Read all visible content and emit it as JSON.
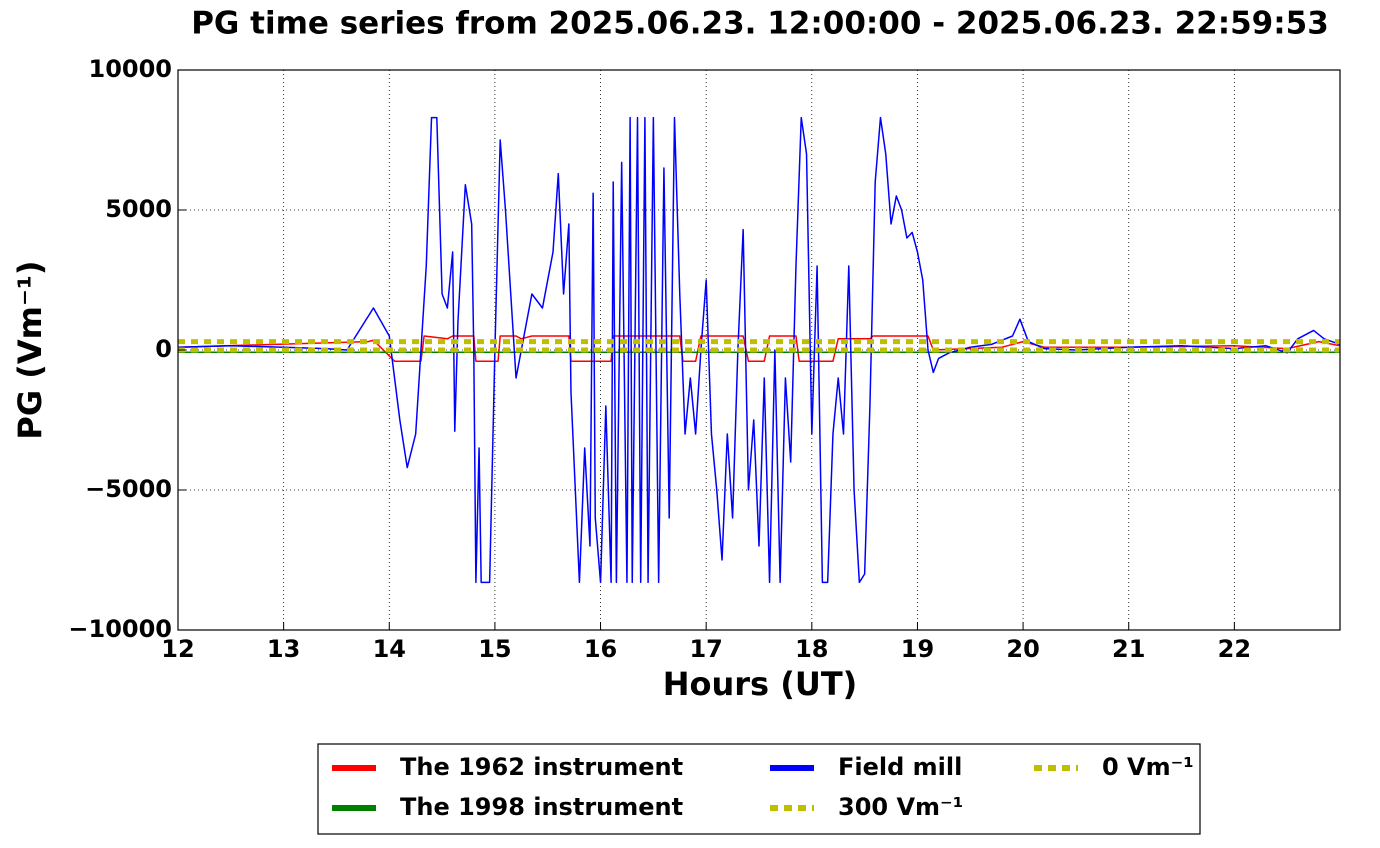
{
  "chart_data": {
    "type": "line",
    "title": "PG time series from 2025.06.23. 12:00:00 - 2025.06.23. 22:59:53",
    "xlabel": "Hours (UT)",
    "ylabel": "PG (Vm⁻¹)",
    "xlim": [
      12,
      23
    ],
    "ylim": [
      -10000,
      10000
    ],
    "xticks": [
      12,
      13,
      14,
      15,
      16,
      17,
      18,
      19,
      20,
      21,
      22
    ],
    "yticks": [
      {
        "value": -10000,
        "label": "−10000"
      },
      {
        "value": -5000,
        "label": "−5000"
      },
      0,
      5000,
      10000
    ],
    "grid": true,
    "series": [
      {
        "name": "The 1962 instrument",
        "color": "#ff0000",
        "dash": false,
        "x": [
          12,
          13.8,
          13.85,
          14.05,
          14.3,
          14.33,
          14.55,
          14.6,
          14.8,
          14.82,
          15.03,
          15.05,
          15.2,
          15.25,
          15.35,
          15.7,
          15.72,
          16.1,
          16.12,
          16.75,
          16.78,
          16.9,
          16.95,
          17.35,
          17.4,
          17.55,
          17.6,
          17.85,
          17.88,
          18.2,
          18.25,
          18.55,
          18.58,
          19.1,
          19.15,
          19.8,
          20.0,
          20.2,
          21,
          22,
          22.5,
          22.8,
          23
        ],
        "values": [
          100,
          300,
          350,
          -400,
          -400,
          500,
          400,
          500,
          500,
          -400,
          -400,
          500,
          500,
          400,
          500,
          500,
          -400,
          -400,
          500,
          500,
          -400,
          -400,
          500,
          500,
          -400,
          -400,
          500,
          500,
          -400,
          -400,
          400,
          400,
          500,
          500,
          0,
          100,
          300,
          100,
          100,
          150,
          50,
          300,
          150
        ]
      },
      {
        "name": "The 1998 instrument",
        "color": "#008000",
        "dash": false,
        "x": [
          12,
          23
        ],
        "values": [
          -80,
          -80
        ]
      },
      {
        "name": "Field mill",
        "color": "#0000ff",
        "dash": false,
        "x": [
          12,
          12.5,
          13,
          13.4,
          13.6,
          13.85,
          14.0,
          14.1,
          14.17,
          14.25,
          14.35,
          14.4,
          14.45,
          14.5,
          14.55,
          14.6,
          14.62,
          14.65,
          14.72,
          14.78,
          14.8,
          14.82,
          14.85,
          14.87,
          14.95,
          15.0,
          15.05,
          15.1,
          15.15,
          15.2,
          15.25,
          15.35,
          15.45,
          15.55,
          15.6,
          15.65,
          15.7,
          15.72,
          15.8,
          15.85,
          15.9,
          15.93,
          15.95,
          16.0,
          16.05,
          16.1,
          16.12,
          16.15,
          16.2,
          16.25,
          16.28,
          16.3,
          16.35,
          16.38,
          16.42,
          16.45,
          16.5,
          16.55,
          16.6,
          16.65,
          16.7,
          16.75,
          16.8,
          16.85,
          16.9,
          16.95,
          17.0,
          17.05,
          17.1,
          17.15,
          17.2,
          17.25,
          17.3,
          17.35,
          17.4,
          17.45,
          17.5,
          17.55,
          17.6,
          17.65,
          17.7,
          17.75,
          17.8,
          17.85,
          17.9,
          17.95,
          18.0,
          18.05,
          18.1,
          18.15,
          18.2,
          18.25,
          18.3,
          18.35,
          18.4,
          18.45,
          18.5,
          18.55,
          18.6,
          18.65,
          18.7,
          18.75,
          18.8,
          18.85,
          18.9,
          18.95,
          19.0,
          19.05,
          19.1,
          19.15,
          19.2,
          19.3,
          19.5,
          19.7,
          19.9,
          19.97,
          20.05,
          20.2,
          20.5,
          21.0,
          21.5,
          22.0,
          22.3,
          22.5,
          22.6,
          22.75,
          22.85,
          23.0
        ],
        "values": [
          100,
          150,
          100,
          50,
          0,
          1500,
          500,
          -2500,
          -4200,
          -3000,
          3000,
          8300,
          8300,
          2000,
          1500,
          3500,
          -2900,
          1000,
          5900,
          4500,
          0,
          -8300,
          -3500,
          -8300,
          -8300,
          0,
          7500,
          5000,
          2000,
          -1000,
          0,
          2000,
          1500,
          3500,
          6300,
          2000,
          4500,
          -1500,
          -8300,
          -3500,
          -7000,
          5600,
          -6000,
          -8300,
          -2000,
          -8300,
          6000,
          -8300,
          6700,
          -8300,
          8300,
          -8300,
          8300,
          -8300,
          8300,
          -8300,
          8300,
          -8300,
          6500,
          -6000,
          8300,
          2000,
          -3000,
          -1000,
          -3000,
          0,
          2500,
          -3000,
          -5000,
          -7500,
          -3000,
          -6000,
          0,
          4300,
          -5000,
          -2500,
          -7000,
          -1000,
          -8300,
          0,
          -8300,
          -1000,
          -4000,
          3000,
          8300,
          7000,
          -3000,
          3000,
          -8300,
          -8300,
          -3000,
          -1000,
          -3000,
          3000,
          -5000,
          -8300,
          -8000,
          -2000,
          6000,
          8300,
          7000,
          4500,
          5500,
          5000,
          4000,
          4200,
          3500,
          2500,
          0,
          -800,
          -300,
          -100,
          100,
          200,
          500,
          1100,
          300,
          50,
          0,
          100,
          150,
          50,
          150,
          -100,
          400,
          700,
          400,
          200
        ]
      },
      {
        "name": "300 Vm⁻¹",
        "color": "#bfbf00",
        "dash": true,
        "x": [
          12,
          23
        ],
        "values": [
          300,
          300
        ]
      },
      {
        "name": "0 Vm⁻¹",
        "color": "#bfbf00",
        "dash": true,
        "x": [
          12,
          23
        ],
        "values": [
          0,
          0
        ]
      }
    ]
  }
}
